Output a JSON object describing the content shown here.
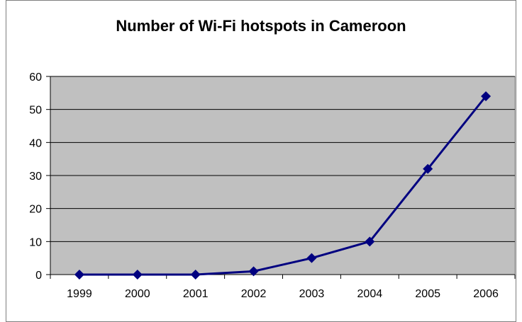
{
  "chart_data": {
    "type": "line",
    "title": "Number of Wi-Fi hotspots in Cameroon",
    "xlabel": "",
    "ylabel": "",
    "categories": [
      "1999",
      "2000",
      "2001",
      "2002",
      "2003",
      "2004",
      "2005",
      "2006"
    ],
    "series": [
      {
        "values": [
          0,
          0,
          0,
          1,
          5,
          10,
          32,
          54
        ]
      }
    ],
    "ylim": [
      0,
      60
    ],
    "yticks": [
      "0",
      "10",
      "20",
      "30",
      "40",
      "50",
      "60"
    ],
    "grid": true,
    "legend": "none",
    "colors": {
      "plot_background": "#c0c0c0",
      "line": "#000080",
      "gridline": "#000000"
    }
  }
}
